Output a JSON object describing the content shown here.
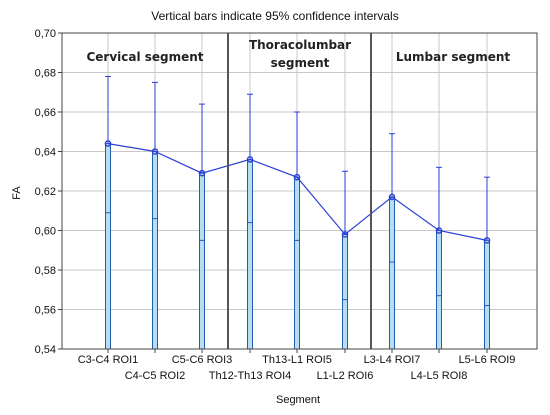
{
  "chart_data": {
    "type": "bar",
    "title": "Vertical bars indicate 95% confidence intervals",
    "xlabel": "Segment",
    "ylabel": "FA",
    "ylim": [
      0.54,
      0.7
    ],
    "yticks": [
      "0,54",
      "0,56",
      "0,58",
      "0,60",
      "0,62",
      "0,64",
      "0,66",
      "0,68",
      "0,70"
    ],
    "categories": [
      "C3-C4 ROI1",
      "C4-C5 ROI2",
      "C5-C6 ROI3",
      "Th12-Th13 ROI4",
      "Th13-L1 ROI5",
      "L1-L2 ROI6",
      "L3-L4 ROI7",
      "L4-L5 ROI8",
      "L5-L6 ROI9"
    ],
    "values": [
      0.644,
      0.64,
      0.629,
      0.636,
      0.627,
      0.598,
      0.617,
      0.6,
      0.595
    ],
    "ci_upper": [
      0.678,
      0.675,
      0.664,
      0.669,
      0.66,
      0.63,
      0.649,
      0.632,
      0.627
    ],
    "ci_lower": [
      0.609,
      0.606,
      0.595,
      0.604,
      0.595,
      0.565,
      0.584,
      0.567,
      0.562
    ],
    "groups": [
      {
        "label_lines": [
          "Cervical segment"
        ]
      },
      {
        "label_lines": [
          "Thoracolumbar",
          "segment"
        ]
      },
      {
        "label_lines": [
          "Lumbar segment"
        ]
      }
    ],
    "grid": true,
    "colors": {
      "line": "#2a3fd4",
      "bar_fill": "#b9dcf2",
      "bar_edge": "#1f5fb0",
      "grid": "#c8c8c8",
      "divider": "#555555"
    }
  }
}
